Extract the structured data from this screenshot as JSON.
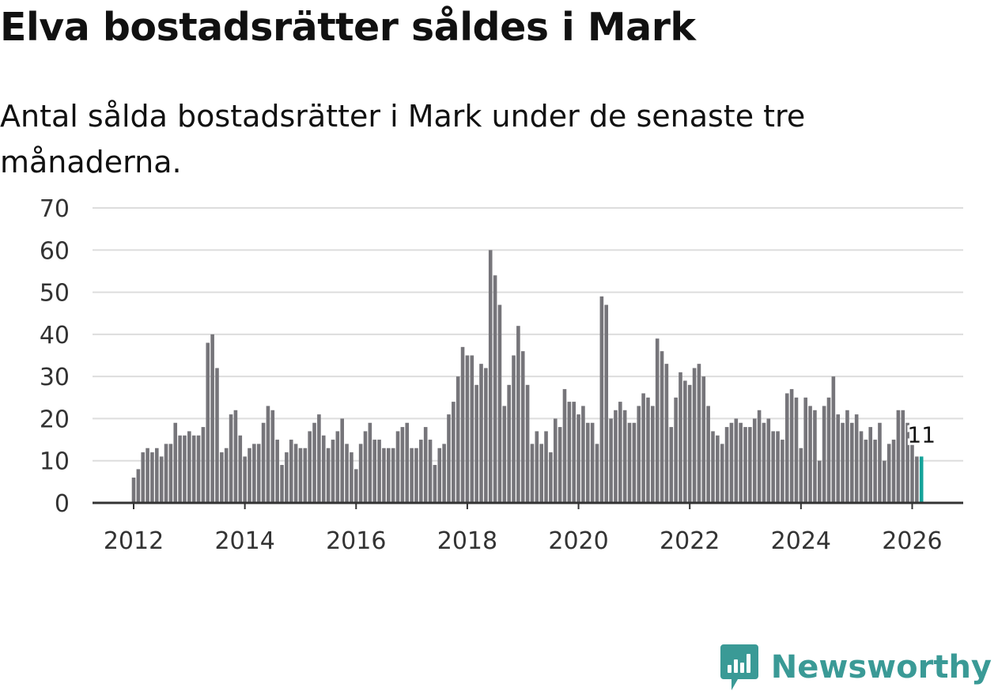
{
  "title": "Elva bostadsrätter såldes i Mark",
  "subtitle": "Antal sålda bostadsrätter i Mark under de senaste tre månaderna.",
  "brand": {
    "name": "Newsworthy",
    "color": "#3a9a96",
    "icon": "newsworthy-logo-icon"
  },
  "colors": {
    "bar": "#76757a",
    "highlight": "#15a39a",
    "grid": "#dddddd",
    "axis": "#333333"
  },
  "chart_data": {
    "type": "bar",
    "title": "Elva bostadsrätter såldes i Mark",
    "subtitle": "Antal sålda bostadsrätter i Mark under de senaste tre månaderna.",
    "xlabel": "",
    "ylabel": "",
    "ylim": [
      0,
      70
    ],
    "yticks": [
      0,
      10,
      20,
      30,
      40,
      50,
      60,
      70
    ],
    "xticks": [
      "2012",
      "2014",
      "2016",
      "2018",
      "2020",
      "2022",
      "2024",
      "2026"
    ],
    "start": "2012-01",
    "grid": true,
    "legend": "none",
    "values": [
      6,
      8,
      12,
      13,
      12,
      13,
      11,
      14,
      14,
      19,
      16,
      16,
      17,
      16,
      16,
      18,
      38,
      40,
      32,
      12,
      13,
      21,
      22,
      16,
      11,
      13,
      14,
      14,
      19,
      23,
      22,
      15,
      9,
      12,
      15,
      14,
      13,
      13,
      17,
      19,
      21,
      16,
      13,
      15,
      17,
      20,
      14,
      12,
      8,
      14,
      17,
      19,
      15,
      15,
      13,
      13,
      13,
      17,
      18,
      19,
      13,
      13,
      15,
      18,
      15,
      9,
      13,
      14,
      21,
      24,
      30,
      37,
      35,
      35,
      28,
      33,
      32,
      60,
      54,
      47,
      23,
      28,
      35,
      42,
      36,
      28,
      14,
      17,
      14,
      17,
      12,
      20,
      18,
      27,
      24,
      24,
      21,
      23,
      19,
      19,
      14,
      49,
      47,
      20,
      22,
      24,
      22,
      19,
      19,
      23,
      26,
      25,
      23,
      39,
      36,
      33,
      18,
      25,
      31,
      29,
      28,
      32,
      33,
      30,
      23,
      17,
      16,
      14,
      18,
      19,
      20,
      19,
      18,
      18,
      20,
      22,
      19,
      20,
      17,
      17,
      15,
      26,
      27,
      25,
      13,
      25,
      23,
      22,
      10,
      23,
      25,
      30,
      21,
      19,
      22,
      19,
      21,
      17,
      15,
      18,
      15,
      19,
      10,
      14,
      15,
      22,
      22,
      19,
      14,
      11,
      11
    ],
    "highlight_label": "11"
  }
}
